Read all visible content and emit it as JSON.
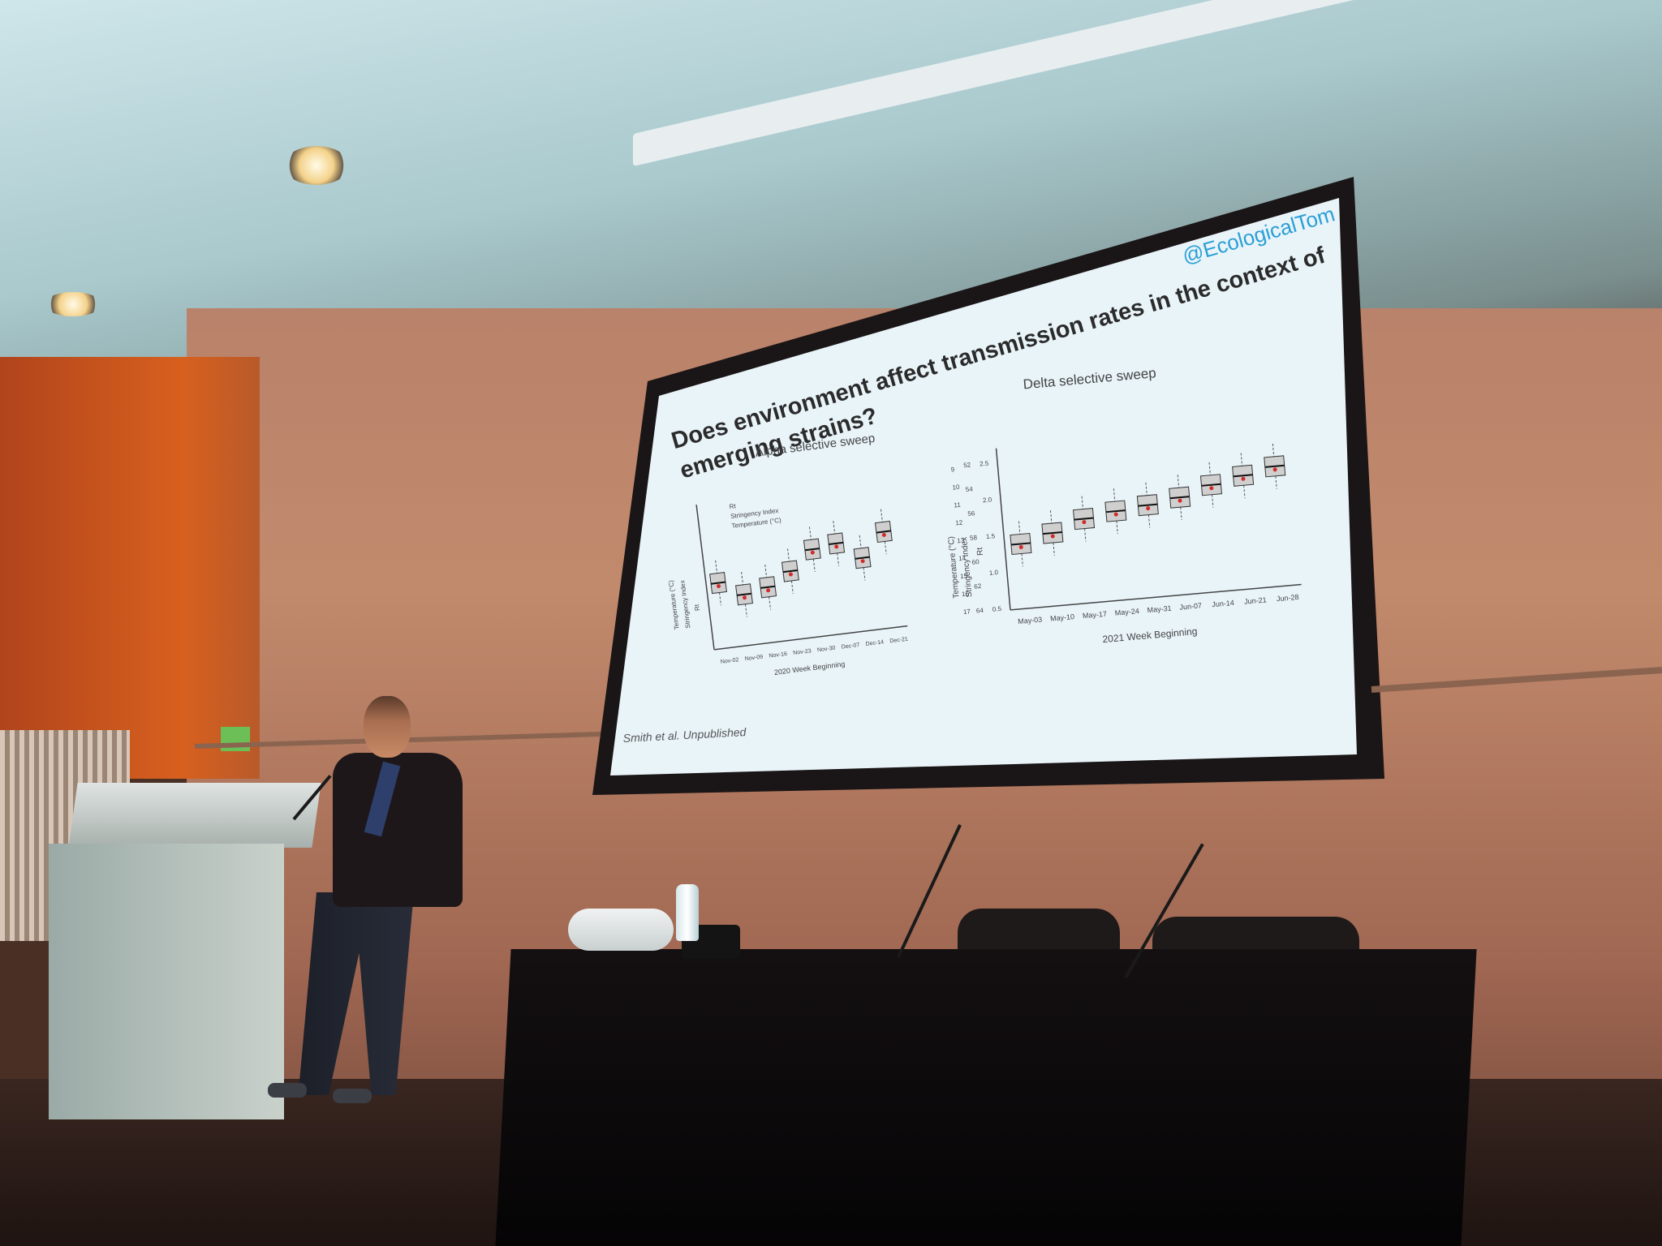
{
  "slide": {
    "handle": "@EcologicalTom",
    "title_line1": "Does environment affect transmission rates in the context of",
    "title_line2": "emerging strains?",
    "citation": "Smith et al. Unpublished",
    "left_chart": {
      "title": "Alpha selective sweep",
      "xlabel": "2020 Week Beginning",
      "categories": [
        "Nov-02",
        "Nov-09",
        "Nov-16",
        "Nov-23",
        "Nov-30",
        "Dec-07",
        "Dec-14",
        "Dec-21"
      ],
      "legend": [
        "Rt",
        "Stringency Index",
        "Temperature (°C)"
      ],
      "ylabels": [
        "Temperature (°C)",
        "Stringency Index",
        "Rt"
      ]
    },
    "right_chart": {
      "title": "Delta selective sweep",
      "xlabel": "2021 Week Beginning",
      "categories": [
        "May-03",
        "May-10",
        "May-17",
        "May-24",
        "May-31",
        "Jun-07",
        "Jun-14",
        "Jun-21",
        "Jun-28"
      ],
      "ylabels": [
        "Temperature (°C)",
        "Stringency Index",
        "Rt"
      ],
      "rt_ticks": [
        "0.5",
        "1.0",
        "1.5",
        "2.0",
        "2.5"
      ],
      "stringency_ticks": [
        "64",
        "62",
        "60",
        "58",
        "56",
        "54",
        "52"
      ],
      "temperature_ticks": [
        "17",
        "16",
        "15",
        "14",
        "13",
        "12",
        "11",
        "10",
        "9"
      ]
    }
  },
  "colors": {
    "slide_bg": "#e9f4f9",
    "handle": "#2a9fd6",
    "box_fill": "#cfcfcf",
    "stringency_marker": "#d22b2b",
    "temperature_marker": "#1f3fa8"
  }
}
